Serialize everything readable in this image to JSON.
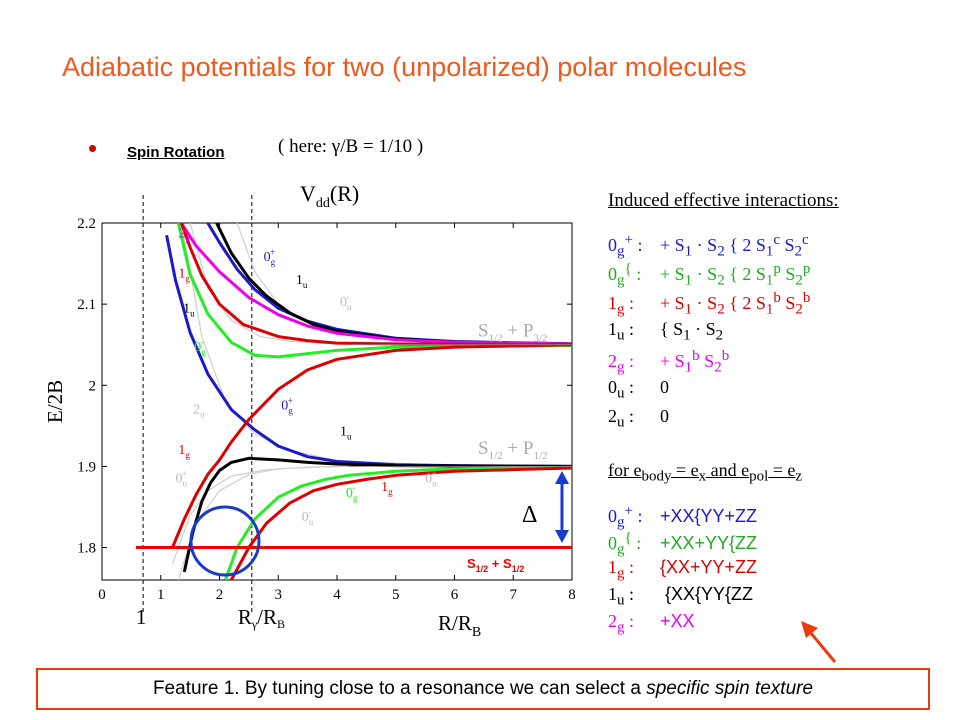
{
  "slide": {
    "title": "Adiabatic potentials for two (unpolarized) polar molecules",
    "bullet_label": "Spin Rotation",
    "here_note": "( here: γ/B = 1/10 )",
    "footer": {
      "text_prefix": "Feature 1. By tuning close to a resonance we can select a ",
      "text_emphasis": "specific spin texture"
    }
  },
  "panel": {
    "title": "Induced effective interactions:",
    "rows": [
      {
        "state": "0g+",
        "html_state": "0<sub>g</sub><sup>+</sup> :",
        "expr": "+ S<sub>1</sub> · S<sub>2</sub> { 2 S<sub>1</sub><sup>c</sup> S<sub>2</sub><sup>c</sup>",
        "color": "#1a1acc"
      },
      {
        "state": "0g{",
        "html_state": "0<sub>g</sub><sup>{</sup> :",
        "expr": "+ S<sub>1</sub> · S<sub>2</sub> { 2 S<sub>1</sub><sup>p</sup> S<sub>2</sub><sup>p</sup>",
        "color": "#22aa22"
      },
      {
        "state": "1g",
        "html_state": "1<sub>g</sub> :",
        "expr": "+ S<sub>1</sub> · S<sub>2</sub> { 2 S<sub>1</sub><sup>b</sup> S<sub>2</sub><sup>b</sup>",
        "color": "#dd0000"
      },
      {
        "state": "1u",
        "html_state": "1<sub>u</sub> :",
        "expr": "{ S<sub>1</sub> · S<sub>2</sub>",
        "color": "#000000"
      },
      {
        "state": "2g",
        "html_state": "2<sub>g</sub> :",
        "expr": "+ S<sub>1</sub><sup>b</sup> S<sub>2</sub><sup>b</sup>",
        "color": "#ee00ee"
      },
      {
        "state": "0u",
        "html_state": "0<sub>u</sub> :",
        "expr": "0",
        "color": "#000000"
      },
      {
        "state": "2u",
        "html_state": "2<sub>u</sub> :",
        "expr": "0",
        "color": "#000000"
      }
    ],
    "subheader_html": "for e<sub>body</sub> = e<sub>x</sub> and e<sub>pol</sub> = e<sub>z</sub>",
    "rows2": [
      {
        "html_state": "0<sub>g</sub><sup>+</sup> :",
        "expr": "+XX{YY+ZZ",
        "color": "#1a1acc"
      },
      {
        "html_state": "0<sub>g</sub><sup>{</sup> :",
        "expr": "+XX+YY{ZZ",
        "color": "#22aa22"
      },
      {
        "html_state": "1<sub>g</sub> :",
        "expr": "{XX+YY+ZZ",
        "color": "#dd0000"
      },
      {
        "html_state": "1<sub>u</sub> :",
        "expr": "&nbsp;{XX{YY{ZZ",
        "color": "#000000"
      },
      {
        "html_state": "2<sub>g</sub> :",
        "expr": "+XX",
        "color": "#ee00ee"
      }
    ]
  },
  "chart_data": {
    "type": "line",
    "title": "V_dd(R)",
    "xlabel": "R/R_B",
    "ylabel": "E/2B",
    "xlim": [
      0,
      8
    ],
    "ylim": [
      1.76,
      2.2
    ],
    "x_ticks": [
      0,
      1,
      2,
      3,
      4,
      5,
      6,
      7,
      8
    ],
    "y_ticks": [
      1.8,
      1.9,
      2,
      2.1,
      2.2
    ],
    "y_tick_labels": [
      "1.8",
      "1.9",
      "2",
      "2.1",
      "2.2"
    ],
    "vertical_markers": [
      {
        "x": 0.7,
        "label": "1"
      },
      {
        "x": 2.55,
        "label": "Rγ/RB"
      }
    ],
    "asymptote_labels": [
      "S1/2 + P3/2",
      "S1/2 + P1/2",
      "S1/2 + S1/2"
    ],
    "delta_label": "Δ",
    "thresholds": {
      "S1/2+P3/2": 2.05,
      "S1/2+P1/2": 1.9,
      "S1/2+S1/2": 1.8
    },
    "series": [
      {
        "name": "0g+ (upper)",
        "color": "#1a1acc",
        "x": [
          1.8,
          2.0,
          2.3,
          2.6,
          3.0,
          3.5,
          4,
          5,
          6,
          8
        ],
        "y": [
          2.2,
          2.176,
          2.143,
          2.118,
          2.095,
          2.079,
          2.069,
          2.058,
          2.054,
          2.051
        ]
      },
      {
        "name": "1u (upper)",
        "color": "#000000",
        "x": [
          1.95,
          2.2,
          2.5,
          2.8,
          3.2,
          3.6,
          4,
          5,
          6,
          8
        ],
        "y": [
          2.2,
          2.163,
          2.132,
          2.11,
          2.089,
          2.075,
          2.067,
          2.057,
          2.053,
          2.051
        ]
      },
      {
        "name": "2g (upper)",
        "color": "#ee00ee",
        "x": [
          1.35,
          1.6,
          2.0,
          2.5,
          3.0,
          3.5,
          4,
          5,
          6,
          8
        ],
        "y": [
          2.2,
          2.172,
          2.14,
          2.108,
          2.087,
          2.073,
          2.064,
          2.056,
          2.053,
          2.051
        ]
      },
      {
        "name": "1g (upper)",
        "color": "#dd0000",
        "x": [
          1.35,
          1.5,
          1.7,
          2.0,
          2.4,
          3.0,
          3.5,
          4,
          5,
          8
        ],
        "y": [
          2.2,
          2.17,
          2.135,
          2.1,
          2.075,
          2.06,
          2.055,
          2.052,
          2.051,
          2.05
        ]
      },
      {
        "name": "0g- (upper)",
        "color": "#22ee22",
        "x": [
          1.3,
          1.5,
          1.8,
          2.2,
          2.6,
          3.0,
          3.5,
          4,
          5,
          8
        ],
        "y": [
          2.2,
          2.137,
          2.088,
          2.053,
          2.037,
          2.035,
          2.039,
          2.043,
          2.047,
          2.049
        ]
      },
      {
        "name": "0g+ (crossing)",
        "color": "#1a1acc",
        "x": [
          1.1,
          1.25,
          1.5,
          1.8,
          2.2,
          2.6,
          3.0,
          3.5,
          4,
          5,
          6,
          8
        ],
        "y": [
          2.185,
          2.13,
          2.065,
          2.014,
          1.97,
          1.945,
          1.925,
          1.912,
          1.906,
          1.902,
          1.901,
          1.9
        ]
      },
      {
        "name": "1g (crossing)",
        "color": "#dd0000",
        "x": [
          1.2,
          1.4,
          1.6,
          1.8,
          2.0,
          2.2,
          2.5,
          3.0,
          3.5,
          4,
          5,
          6,
          8
        ],
        "y": [
          1.8,
          1.835,
          1.865,
          1.89,
          1.908,
          1.93,
          1.958,
          1.995,
          2.019,
          2.032,
          2.043,
          2.047,
          2.05
        ]
      },
      {
        "name": "1u (lower)",
        "color": "#000000",
        "x": [
          1.4,
          1.55,
          1.7,
          1.85,
          2.0,
          2.2,
          2.5,
          3.0,
          3.5,
          4,
          5,
          8
        ],
        "y": [
          1.77,
          1.82,
          1.857,
          1.88,
          1.895,
          1.905,
          1.91,
          1.908,
          1.905,
          1.903,
          1.901,
          1.9
        ]
      },
      {
        "name": "0g- (lower)",
        "color": "#22ee22",
        "x": [
          2.1,
          2.3,
          2.6,
          3.0,
          3.4,
          3.8,
          4.2,
          5,
          6,
          8
        ],
        "y": [
          1.76,
          1.8,
          1.835,
          1.862,
          1.876,
          1.884,
          1.889,
          1.894,
          1.897,
          1.899
        ]
      },
      {
        "name": "1g (lower)",
        "color": "#dd0000",
        "x": [
          2.2,
          2.5,
          2.8,
          3.2,
          3.6,
          4.0,
          4.5,
          5,
          6,
          8
        ],
        "y": [
          1.76,
          1.8,
          1.83,
          1.855,
          1.87,
          1.878,
          1.884,
          1.889,
          1.894,
          1.898
        ]
      }
    ],
    "state_labels": [
      {
        "text": "2g",
        "x": 1.3,
        "y": 2.182,
        "color": "#ee00ee"
      },
      {
        "text": "1g",
        "x": 1.3,
        "y": 2.133,
        "color": "#dd0000"
      },
      {
        "text": "1u",
        "x": 1.38,
        "y": 2.09,
        "color": "#000000"
      },
      {
        "text": "0g-",
        "x": 1.57,
        "y": 2.042,
        "color": "#22ee22"
      },
      {
        "text": "0g+",
        "x": 2.75,
        "y": 2.153,
        "color": "#1a1acc"
      },
      {
        "text": "1u",
        "x": 3.3,
        "y": 2.125,
        "color": "#000000"
      },
      {
        "text": "0u-",
        "x": 4.05,
        "y": 2.098,
        "color": "#bbbbbb"
      },
      {
        "text": "2u",
        "x": 1.55,
        "y": 1.965,
        "color": "#bbbbbb"
      },
      {
        "text": "0g+",
        "x": 3.05,
        "y": 1.97,
        "color": "#1a1acc"
      },
      {
        "text": "1u",
        "x": 4.05,
        "y": 1.938,
        "color": "#000000"
      },
      {
        "text": "1g",
        "x": 1.3,
        "y": 1.915,
        "color": "#dd0000"
      },
      {
        "text": "0u+",
        "x": 1.25,
        "y": 1.88,
        "color": "#bbbbbb"
      },
      {
        "text": "0g-",
        "x": 4.15,
        "y": 1.862,
        "color": "#22ee22"
      },
      {
        "text": "1g",
        "x": 4.75,
        "y": 1.87,
        "color": "#dd0000"
      },
      {
        "text": "0u+",
        "x": 5.5,
        "y": 1.88,
        "color": "#bbbbbb"
      },
      {
        "text": "0u-",
        "x": 3.4,
        "y": 1.833,
        "color": "#bbbbbb"
      }
    ]
  }
}
